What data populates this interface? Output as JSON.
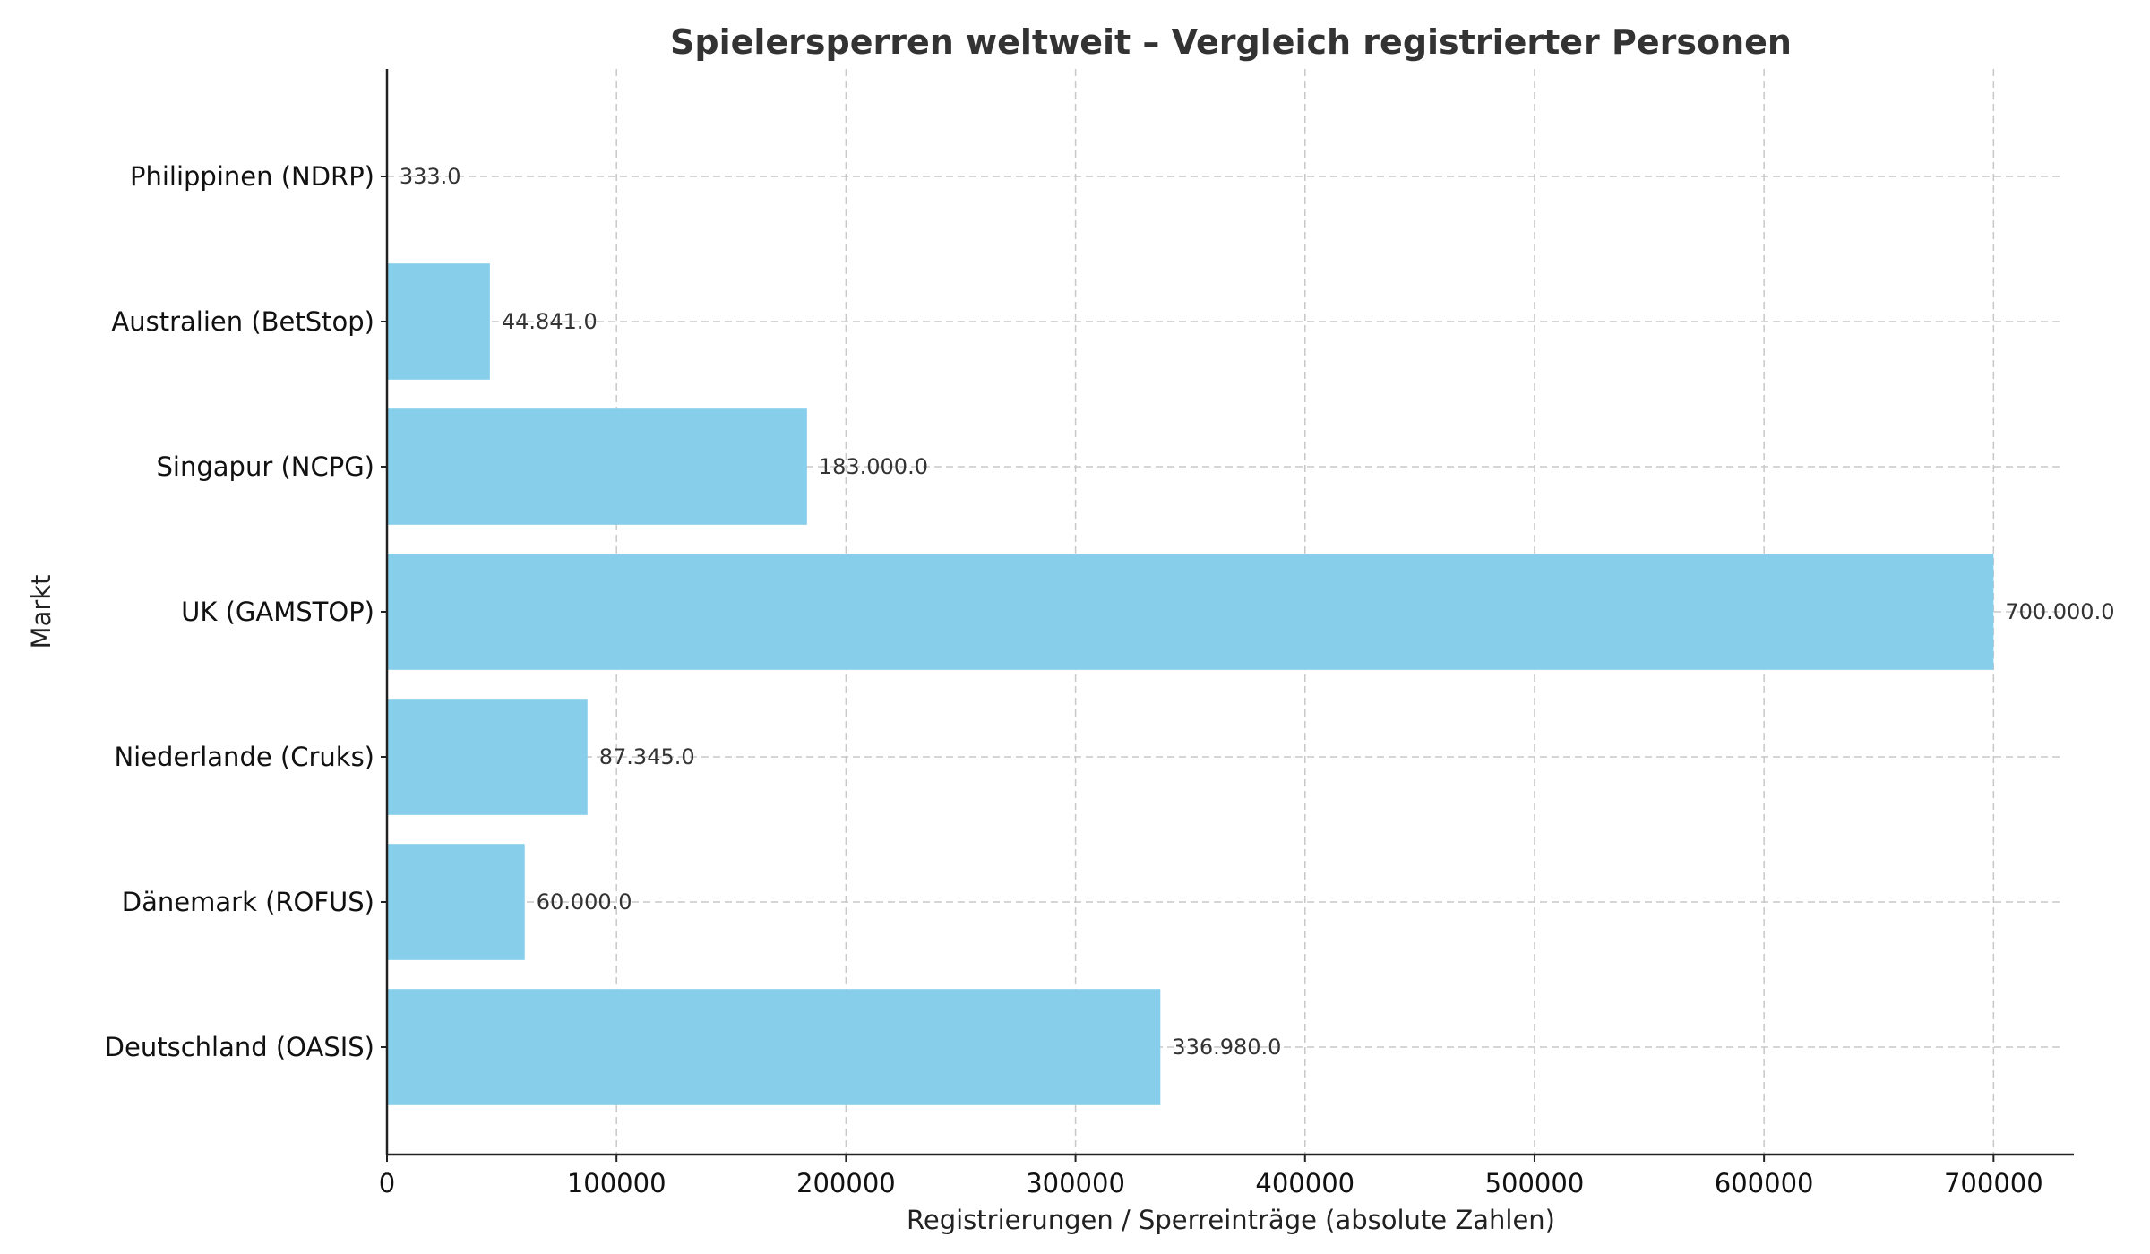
{
  "chart_data": {
    "type": "bar",
    "orientation": "horizontal",
    "title": "Spielersperren weltweit – Vergleich registrierter Personen",
    "xlabel": "Registrierungen / Sperreinträge (absolute Zahlen)",
    "ylabel": "Markt",
    "categories": [
      "Deutschland (OASIS)",
      "Dänemark (ROFUS)",
      "Niederlande (Cruks)",
      "UK (GAMSTOP)",
      "Singapur (NCPG)",
      "Australien (BetStop)",
      "Philippinen (NDRP)"
    ],
    "values": [
      336980,
      60000,
      87345,
      700000,
      183000,
      44841,
      333
    ],
    "data_labels": [
      "336.980.0",
      "60.000.0",
      "87.345.0",
      "700.000.0",
      "183.000.0",
      "44.841.0",
      "333.0"
    ],
    "xticks": [
      "0",
      "100000",
      "200000",
      "300000",
      "400000",
      "500000",
      "600000",
      "700000"
    ],
    "xtick_values": [
      0,
      100000,
      200000,
      300000,
      400000,
      500000,
      600000,
      700000
    ],
    "xlim": [
      0,
      735000
    ],
    "grid": true,
    "bar_color": "#87CEEB"
  }
}
